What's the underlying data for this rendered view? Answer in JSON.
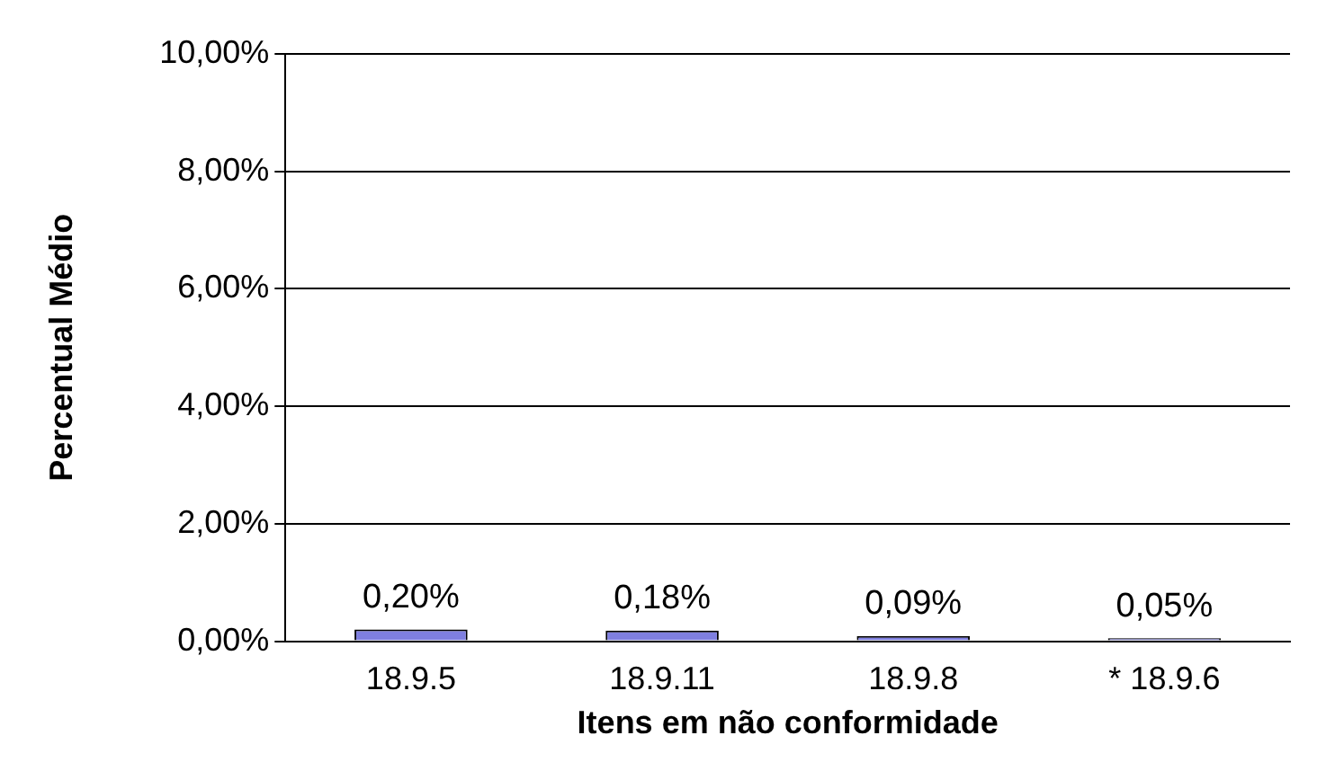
{
  "chart_data": {
    "type": "bar",
    "xlabel": "Itens em não conformidade",
    "ylabel": "Percentual Médio",
    "categories": [
      "18.9.5",
      "18.9.11",
      "18.9.8",
      "* 18.9.6"
    ],
    "values": [
      0.2,
      0.18,
      0.09,
      0.05
    ],
    "value_labels": [
      "0,20%",
      "0,18%",
      "0,09%",
      "0,05%"
    ],
    "color": "#7f7fe0",
    "ylim": [
      0,
      10
    ],
    "yticks": [
      {
        "value": 0,
        "label": "0,00%"
      },
      {
        "value": 2,
        "label": "2,00%"
      },
      {
        "value": 4,
        "label": "4,00%"
      },
      {
        "value": 6,
        "label": "6,00%"
      },
      {
        "value": 8,
        "label": "8,00%"
      },
      {
        "value": 10,
        "label": "10,00%"
      }
    ],
    "grid": "y"
  }
}
